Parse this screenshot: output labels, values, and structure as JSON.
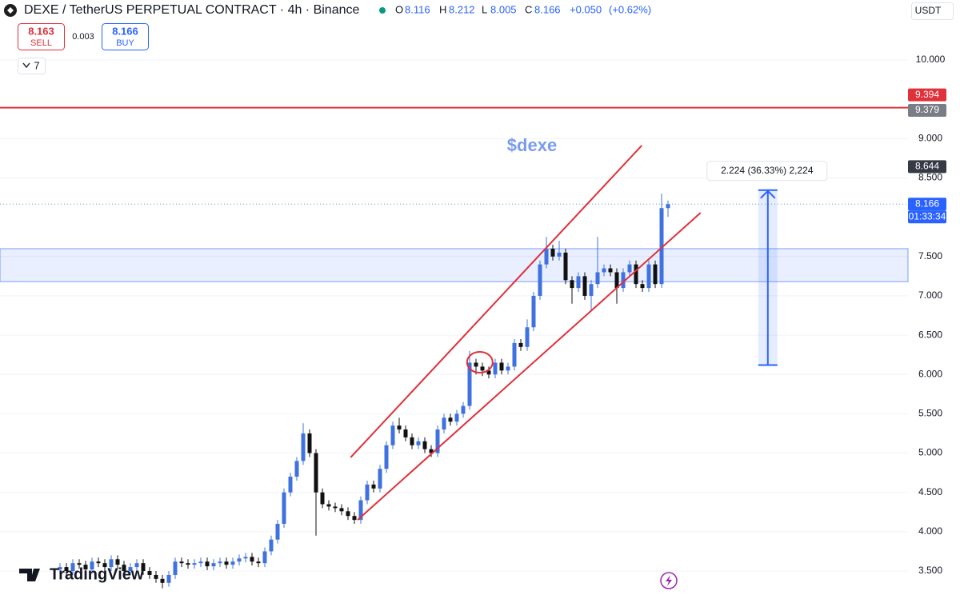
{
  "header": {
    "title": "DEXE / TetherUS PERPETUAL CONTRACT · 4h · Binance",
    "o_label": "O",
    "h_label": "H",
    "l_label": "L",
    "c_label": "C",
    "change": "+0.050",
    "change_pct": "(+0.62%)",
    "sell_price": "8.163",
    "sell_label": "SELL",
    "spread": "0.003",
    "buy_price": "8.166",
    "buy_label": "BUY",
    "indicators_count": "7",
    "currency": "USDT",
    "watermark": "TradingView"
  },
  "chart_data": {
    "type": "candlestick",
    "open": [
      3.52,
      3.55,
      3.5,
      3.6,
      3.58,
      3.52,
      3.62,
      3.6,
      3.55,
      3.65,
      3.58,
      3.5,
      3.55,
      3.6,
      3.5,
      3.45,
      3.4,
      3.35,
      3.45,
      3.62,
      3.6,
      3.58,
      3.6,
      3.62,
      3.56,
      3.6,
      3.62,
      3.58,
      3.62,
      3.66,
      3.68,
      3.62,
      3.6,
      3.75,
      3.9,
      4.1,
      4.5,
      4.7,
      4.9,
      5.25,
      5.0,
      4.5,
      4.35,
      4.32,
      4.3,
      4.26,
      4.2,
      4.15,
      4.4,
      4.6,
      4.55,
      4.8,
      5.1,
      5.35,
      5.3,
      5.2,
      5.1,
      5.15,
      5.05,
      5.0,
      5.3,
      5.45,
      5.4,
      5.5,
      5.6,
      6.15,
      6.1,
      6.05,
      6.0,
      6.15,
      6.05,
      6.1,
      6.4,
      6.35,
      6.6,
      7.0,
      7.4,
      7.6,
      7.5,
      7.55,
      7.2,
      7.1,
      7.25,
      7.0,
      7.15,
      7.3,
      7.35,
      7.3,
      7.1,
      7.3,
      7.4,
      7.15,
      7.1,
      7.4,
      7.15,
      8.116
    ],
    "high": [
      3.6,
      3.6,
      3.65,
      3.65,
      3.63,
      3.67,
      3.67,
      3.65,
      3.7,
      3.7,
      3.63,
      3.6,
      3.65,
      3.65,
      3.55,
      3.5,
      3.45,
      3.5,
      3.67,
      3.67,
      3.65,
      3.65,
      3.67,
      3.67,
      3.65,
      3.67,
      3.67,
      3.67,
      3.71,
      3.73,
      3.73,
      3.67,
      3.8,
      3.95,
      4.15,
      4.55,
      4.75,
      4.95,
      5.38,
      5.3,
      5.05,
      4.55,
      4.4,
      4.37,
      4.35,
      4.31,
      4.25,
      4.45,
      4.65,
      4.65,
      4.85,
      5.15,
      5.4,
      5.45,
      5.35,
      5.25,
      5.2,
      5.2,
      5.1,
      5.35,
      5.5,
      5.5,
      5.55,
      5.65,
      6.3,
      6.2,
      6.15,
      6.1,
      6.2,
      6.2,
      6.15,
      6.45,
      6.45,
      6.7,
      7.05,
      7.45,
      7.75,
      7.65,
      7.7,
      7.6,
      7.25,
      7.3,
      7.3,
      7.2,
      7.75,
      7.4,
      7.4,
      7.35,
      7.35,
      7.45,
      7.45,
      7.2,
      7.45,
      7.45,
      8.3,
      8.212
    ],
    "low": [
      3.47,
      3.45,
      3.45,
      3.53,
      3.47,
      3.47,
      3.55,
      3.5,
      3.5,
      3.53,
      3.45,
      3.45,
      3.5,
      3.45,
      3.4,
      3.35,
      3.28,
      3.3,
      3.4,
      3.55,
      3.53,
      3.53,
      3.55,
      3.51,
      3.51,
      3.55,
      3.53,
      3.53,
      3.57,
      3.61,
      3.57,
      3.55,
      3.55,
      3.7,
      3.85,
      4.05,
      4.45,
      4.65,
      4.85,
      4.95,
      3.95,
      4.3,
      4.27,
      4.25,
      4.21,
      4.15,
      4.1,
      4.1,
      4.35,
      4.5,
      4.5,
      4.75,
      5.05,
      5.25,
      5.15,
      5.05,
      5.05,
      5.0,
      4.95,
      4.95,
      5.25,
      5.35,
      5.35,
      5.45,
      5.55,
      6.0,
      5.98,
      5.95,
      5.95,
      6.0,
      6.0,
      6.05,
      6.3,
      6.3,
      6.55,
      6.95,
      7.35,
      7.45,
      7.45,
      7.15,
      6.9,
      7.05,
      6.95,
      6.8,
      7.1,
      7.25,
      7.25,
      6.9,
      7.05,
      7.25,
      7.1,
      7.05,
      7.05,
      7.1,
      7.1,
      8.005
    ],
    "close": [
      3.55,
      3.5,
      3.6,
      3.58,
      3.52,
      3.62,
      3.6,
      3.55,
      3.65,
      3.58,
      3.5,
      3.55,
      3.6,
      3.5,
      3.45,
      3.4,
      3.35,
      3.45,
      3.62,
      3.6,
      3.58,
      3.6,
      3.62,
      3.56,
      3.6,
      3.62,
      3.58,
      3.62,
      3.66,
      3.68,
      3.62,
      3.6,
      3.75,
      3.9,
      4.1,
      4.5,
      4.7,
      4.9,
      5.25,
      5.0,
      4.5,
      4.35,
      4.32,
      4.3,
      4.26,
      4.2,
      4.15,
      4.4,
      4.6,
      4.55,
      4.8,
      5.1,
      5.35,
      5.3,
      5.2,
      5.1,
      5.15,
      5.05,
      5.0,
      5.3,
      5.45,
      5.4,
      5.5,
      5.6,
      6.15,
      6.1,
      6.05,
      6.0,
      6.15,
      6.05,
      6.1,
      6.4,
      6.35,
      6.6,
      7.0,
      7.4,
      7.6,
      7.5,
      7.55,
      7.2,
      7.1,
      7.25,
      7.0,
      7.15,
      7.3,
      7.35,
      7.3,
      7.1,
      7.3,
      7.4,
      7.15,
      7.1,
      7.4,
      7.15,
      8.116,
      8.166
    ],
    "up_color": "#3f72e0",
    "down_color": "#111111",
    "xlim": [
      -9.375,
      132.5
    ],
    "ylim": [
      3.195,
      10.763
    ],
    "yticks": [
      {
        "value": 3.5,
        "label": "3.500"
      },
      {
        "value": 4,
        "label": "4.000"
      },
      {
        "value": 4.5,
        "label": "4.500"
      },
      {
        "value": 5,
        "label": "5.000"
      },
      {
        "value": 5.5,
        "label": "5.500"
      },
      {
        "value": 6,
        "label": "6.000"
      },
      {
        "value": 6.5,
        "label": "6.500"
      },
      {
        "value": 7,
        "label": "7.000"
      },
      {
        "value": 7.5,
        "label": "7.500"
      },
      {
        "value": 8.5,
        "label": "8.500"
      },
      {
        "value": 9,
        "label": "9.000"
      },
      {
        "value": 10,
        "label": "10.000"
      }
    ],
    "grid": true,
    "horizontal_line": {
      "price": 9.394,
      "color": "#e0303a"
    },
    "zone": {
      "from": 7.18,
      "to": 7.6,
      "color": "#2962ff"
    },
    "channel": {
      "color": "#e0303a",
      "lines": [
        [
          [
            45.4,
            4.944
          ],
          [
            90.9,
            8.912
          ]
        ],
        [
          [
            46.5,
            4.15
          ],
          [
            100.1,
            8.057
          ]
        ]
      ]
    },
    "highlight": {
      "x": 65.6,
      "y": 6.155,
      "color": "#e0303a"
    },
    "annotation": {
      "text": "$dexe",
      "x": 73.75,
      "y": 8.9,
      "color": "#7a9cf0"
    },
    "measure": {
      "x": 110.6,
      "from": 6.12,
      "to": 8.344,
      "label": "2.224 (36.33%) 2,224",
      "color": "#2962ff"
    },
    "price_labels": [
      {
        "value": 9.394,
        "color": "#e0303a"
      },
      {
        "value": 9.379,
        "color": "#7a7d86"
      },
      {
        "value": 8.644,
        "color": "#363a45"
      },
      {
        "value": 8.166,
        "color": "#2962ff",
        "countdown": "01:33:34"
      }
    ]
  }
}
